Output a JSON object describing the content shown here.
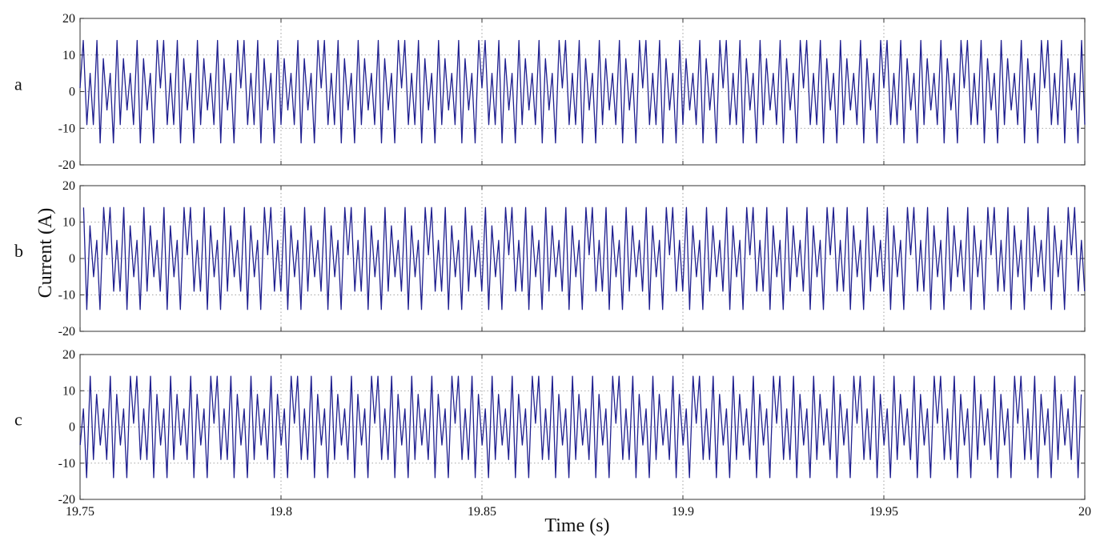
{
  "chart_data": [
    {
      "type": "line",
      "panel_label": "a",
      "ylim": [
        -20,
        20
      ],
      "xlim": [
        19.75,
        20
      ],
      "yticks": [
        "20",
        "10",
        "0",
        "-10",
        "-20"
      ],
      "grid": true,
      "series": [
        {
          "color": "#1f1f8f",
          "description_of_shape": "periodic multilevel chopped waveform, fundamental period 0.02 s",
          "x": [
            19.75,
            19.7508,
            19.7517,
            19.7525,
            19.7533,
            19.7542,
            19.755,
            19.7558,
            19.7567,
            19.7575,
            19.7583,
            19.7592,
            19.76,
            19.7608,
            19.7617,
            19.7625,
            19.7633,
            19.7642,
            19.765,
            19.7658,
            19.7667,
            19.7675,
            19.7683,
            19.7692,
            19.77
          ],
          "y": [
            1,
            14,
            -9,
            5,
            -9,
            14,
            -14,
            9,
            -5,
            5,
            -14,
            14,
            -9,
            9,
            -5,
            5,
            -9,
            14,
            -14,
            9,
            -5,
            5,
            -14,
            14,
            1
          ]
        }
      ]
    },
    {
      "type": "line",
      "panel_label": "b",
      "ylim": [
        -20,
        20
      ],
      "xlim": [
        19.75,
        20
      ],
      "yticks": [
        "20",
        "10",
        "0",
        "-10",
        "-20"
      ],
      "grid": true,
      "series": [
        {
          "color": "#1f1f8f",
          "description_of_shape": "same waveform as phase a, shifted by one third of the period",
          "phase_shift_s": 0.00667
        }
      ]
    },
    {
      "type": "line",
      "panel_label": "c",
      "ylim": [
        -20,
        20
      ],
      "xlim": [
        19.75,
        20
      ],
      "yticks": [
        "20",
        "10",
        "0",
        "-10",
        "-20"
      ],
      "xticks": [
        "19.75",
        "19.8",
        "19.85",
        "19.9",
        "19.95",
        "20"
      ],
      "grid": true,
      "series": [
        {
          "color": "#1f1f8f",
          "description_of_shape": "same waveform as phase a, shifted by two thirds of the period",
          "phase_shift_s": 0.01333
        }
      ]
    }
  ],
  "axes": {
    "ylabel": "Current (A)",
    "xlabel": "Time (s)"
  }
}
